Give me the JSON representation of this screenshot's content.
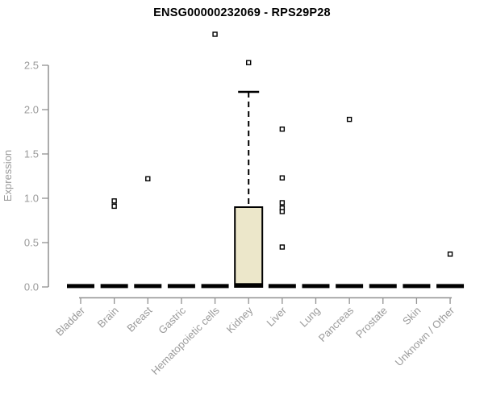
{
  "chart_data": {
    "type": "box",
    "title": "ENSG00000232069 - RPS29P28",
    "ylabel": "Expression",
    "xlabel": "",
    "ylim": [
      0,
      2.9
    ],
    "yticks": [
      "0.0",
      "0.5",
      "1.0",
      "1.5",
      "2.0",
      "2.5"
    ],
    "grid": false,
    "legend": null,
    "categories": [
      "Bladder",
      "Brain",
      "Breast",
      "Gastric",
      "Hematopoietic cells",
      "Kidney",
      "Liver",
      "Lung",
      "Pancreas",
      "Prostate",
      "Skin",
      "Unknown / Other"
    ],
    "series": [
      {
        "category": "Bladder",
        "median": 0.01,
        "q1": 0,
        "q3": 0.01,
        "whisker_high": 0.01,
        "outliers": []
      },
      {
        "category": "Brain",
        "median": 0.01,
        "q1": 0,
        "q3": 0.01,
        "whisker_high": 0.01,
        "outliers": [
          0.97,
          0.91
        ]
      },
      {
        "category": "Breast",
        "median": 0.01,
        "q1": 0,
        "q3": 0.01,
        "whisker_high": 0.01,
        "outliers": [
          1.22
        ]
      },
      {
        "category": "Gastric",
        "median": 0.01,
        "q1": 0,
        "q3": 0.01,
        "whisker_high": 0.01,
        "outliers": []
      },
      {
        "category": "Hematopoietic cells",
        "median": 0.01,
        "q1": 0,
        "q3": 0.01,
        "whisker_high": 0.01,
        "outliers": [
          2.85
        ]
      },
      {
        "category": "Kidney",
        "median": 0.02,
        "q1": 0,
        "q3": 0.9,
        "whisker_high": 2.2,
        "outliers": [
          2.53
        ]
      },
      {
        "category": "Liver",
        "median": 0.01,
        "q1": 0,
        "q3": 0.01,
        "whisker_high": 0.01,
        "outliers": [
          1.78,
          1.23,
          0.95,
          0.89,
          0.85,
          0.45
        ]
      },
      {
        "category": "Lung",
        "median": 0.01,
        "q1": 0,
        "q3": 0.01,
        "whisker_high": 0.01,
        "outliers": []
      },
      {
        "category": "Pancreas",
        "median": 0.01,
        "q1": 0,
        "q3": 0.01,
        "whisker_high": 0.01,
        "outliers": [
          1.89
        ]
      },
      {
        "category": "Prostate",
        "median": 0.01,
        "q1": 0,
        "q3": 0.01,
        "whisker_high": 0.01,
        "outliers": []
      },
      {
        "category": "Skin",
        "median": 0.01,
        "q1": 0,
        "q3": 0.01,
        "whisker_high": 0.01,
        "outliers": []
      },
      {
        "category": "Unknown / Other",
        "median": 0.01,
        "q1": 0,
        "q3": 0.01,
        "whisker_high": 0.01,
        "outliers": [
          0.37
        ]
      }
    ],
    "colors": {
      "box_fill": "#ece7ca",
      "box_stroke": "#000000",
      "median": "#000000",
      "outlier": "#000000",
      "axis": "#919191",
      "tick_label": "#9a9a9a",
      "title": "#000000"
    }
  }
}
